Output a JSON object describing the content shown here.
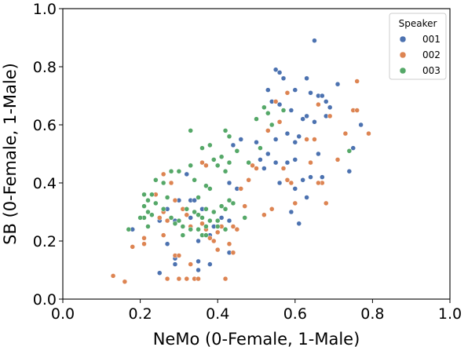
{
  "chart_data": {
    "type": "scatter",
    "xlabel": "NeMo (0-Female, 1-Male)",
    "ylabel": "SB (0-Female, 1-Male)",
    "xlim": [
      0.0,
      1.0
    ],
    "ylim": [
      0.0,
      1.0
    ],
    "xticks": [
      "0.0",
      "0.2",
      "0.4",
      "0.6",
      "0.8",
      "1.0"
    ],
    "yticks": [
      "0.0",
      "0.2",
      "0.4",
      "0.6",
      "0.8",
      "1.0"
    ],
    "grid": false,
    "legend": {
      "title": "Speaker",
      "placement": "top-right"
    },
    "series": [
      {
        "name": "001",
        "color": "#4c72b0",
        "points": [
          [
            0.65,
            0.89
          ],
          [
            0.55,
            0.79
          ],
          [
            0.56,
            0.78
          ],
          [
            0.57,
            0.76
          ],
          [
            0.63,
            0.76
          ],
          [
            0.71,
            0.74
          ],
          [
            0.53,
            0.72
          ],
          [
            0.6,
            0.72
          ],
          [
            0.64,
            0.71
          ],
          [
            0.66,
            0.7
          ],
          [
            0.67,
            0.7
          ],
          [
            0.68,
            0.68
          ],
          [
            0.69,
            0.66
          ],
          [
            0.54,
            0.68
          ],
          [
            0.56,
            0.67
          ],
          [
            0.59,
            0.65
          ],
          [
            0.63,
            0.63
          ],
          [
            0.68,
            0.63
          ],
          [
            0.62,
            0.62
          ],
          [
            0.65,
            0.61
          ],
          [
            0.77,
            0.6
          ],
          [
            0.53,
            0.58
          ],
          [
            0.58,
            0.57
          ],
          [
            0.61,
            0.56
          ],
          [
            0.6,
            0.54
          ],
          [
            0.55,
            0.55
          ],
          [
            0.5,
            0.54
          ],
          [
            0.53,
            0.5
          ],
          [
            0.46,
            0.55
          ],
          [
            0.44,
            0.53
          ],
          [
            0.51,
            0.48
          ],
          [
            0.55,
            0.47
          ],
          [
            0.58,
            0.47
          ],
          [
            0.6,
            0.48
          ],
          [
            0.66,
            0.5
          ],
          [
            0.52,
            0.45
          ],
          [
            0.57,
            0.45
          ],
          [
            0.62,
            0.41
          ],
          [
            0.64,
            0.42
          ],
          [
            0.56,
            0.4
          ],
          [
            0.6,
            0.38
          ],
          [
            0.63,
            0.35
          ],
          [
            0.67,
            0.42
          ],
          [
            0.75,
            0.52
          ],
          [
            0.74,
            0.44
          ],
          [
            0.59,
            0.3
          ],
          [
            0.61,
            0.26
          ],
          [
            0.43,
            0.4
          ],
          [
            0.45,
            0.38
          ],
          [
            0.33,
            0.34
          ],
          [
            0.34,
            0.34
          ],
          [
            0.36,
            0.31
          ],
          [
            0.41,
            0.28
          ],
          [
            0.43,
            0.27
          ],
          [
            0.39,
            0.25
          ],
          [
            0.25,
            0.27
          ],
          [
            0.29,
            0.27
          ],
          [
            0.27,
            0.31
          ],
          [
            0.33,
            0.28
          ],
          [
            0.38,
            0.22
          ],
          [
            0.35,
            0.2
          ],
          [
            0.18,
            0.24
          ],
          [
            0.27,
            0.19
          ],
          [
            0.29,
            0.14
          ],
          [
            0.29,
            0.12
          ],
          [
            0.35,
            0.1
          ],
          [
            0.35,
            0.13
          ],
          [
            0.25,
            0.09
          ],
          [
            0.38,
            0.12
          ],
          [
            0.43,
            0.16
          ],
          [
            0.24,
            0.36
          ],
          [
            0.3,
            0.34
          ],
          [
            0.32,
            0.43
          ]
        ]
      },
      {
        "name": "002",
        "color": "#dd8452",
        "points": [
          [
            0.76,
            0.75
          ],
          [
            0.58,
            0.71
          ],
          [
            0.66,
            0.67
          ],
          [
            0.75,
            0.65
          ],
          [
            0.76,
            0.65
          ],
          [
            0.73,
            0.57
          ],
          [
            0.79,
            0.57
          ],
          [
            0.69,
            0.63
          ],
          [
            0.55,
            0.68
          ],
          [
            0.56,
            0.61
          ],
          [
            0.63,
            0.55
          ],
          [
            0.65,
            0.55
          ],
          [
            0.53,
            0.58
          ],
          [
            0.57,
            0.45
          ],
          [
            0.64,
            0.47
          ],
          [
            0.71,
            0.48
          ],
          [
            0.67,
            0.4
          ],
          [
            0.66,
            0.4
          ],
          [
            0.58,
            0.41
          ],
          [
            0.59,
            0.4
          ],
          [
            0.5,
            0.45
          ],
          [
            0.49,
            0.46
          ],
          [
            0.48,
            0.41
          ],
          [
            0.46,
            0.38
          ],
          [
            0.54,
            0.31
          ],
          [
            0.6,
            0.33
          ],
          [
            0.68,
            0.33
          ],
          [
            0.52,
            0.29
          ],
          [
            0.47,
            0.32
          ],
          [
            0.45,
            0.24
          ],
          [
            0.36,
            0.47
          ],
          [
            0.37,
            0.46
          ],
          [
            0.24,
            0.36
          ],
          [
            0.27,
            0.27
          ],
          [
            0.26,
            0.3
          ],
          [
            0.29,
            0.34
          ],
          [
            0.31,
            0.31
          ],
          [
            0.32,
            0.29
          ],
          [
            0.33,
            0.25
          ],
          [
            0.36,
            0.26
          ],
          [
            0.37,
            0.24
          ],
          [
            0.38,
            0.21
          ],
          [
            0.4,
            0.23
          ],
          [
            0.41,
            0.25
          ],
          [
            0.39,
            0.2
          ],
          [
            0.4,
            0.17
          ],
          [
            0.44,
            0.16
          ],
          [
            0.44,
            0.25
          ],
          [
            0.43,
            0.19
          ],
          [
            0.21,
            0.21
          ],
          [
            0.21,
            0.19
          ],
          [
            0.26,
            0.22
          ],
          [
            0.25,
            0.28
          ],
          [
            0.18,
            0.18
          ],
          [
            0.29,
            0.15
          ],
          [
            0.3,
            0.15
          ],
          [
            0.33,
            0.12
          ],
          [
            0.27,
            0.07
          ],
          [
            0.3,
            0.07
          ],
          [
            0.32,
            0.07
          ],
          [
            0.34,
            0.07
          ],
          [
            0.35,
            0.07
          ],
          [
            0.42,
            0.07
          ],
          [
            0.13,
            0.08
          ],
          [
            0.16,
            0.06
          ],
          [
            0.28,
            0.4
          ],
          [
            0.26,
            0.43
          ]
        ]
      },
      {
        "name": "003",
        "color": "#55a868",
        "points": [
          [
            0.5,
            0.62
          ],
          [
            0.53,
            0.64
          ],
          [
            0.54,
            0.6
          ],
          [
            0.52,
            0.66
          ],
          [
            0.57,
            0.65
          ],
          [
            0.33,
            0.58
          ],
          [
            0.42,
            0.58
          ],
          [
            0.43,
            0.56
          ],
          [
            0.38,
            0.53
          ],
          [
            0.36,
            0.52
          ],
          [
            0.45,
            0.51
          ],
          [
            0.41,
            0.49
          ],
          [
            0.39,
            0.48
          ],
          [
            0.43,
            0.47
          ],
          [
            0.4,
            0.46
          ],
          [
            0.42,
            0.44
          ],
          [
            0.3,
            0.44
          ],
          [
            0.28,
            0.44
          ],
          [
            0.33,
            0.46
          ],
          [
            0.48,
            0.47
          ],
          [
            0.51,
            0.52
          ],
          [
            0.74,
            0.51
          ],
          [
            0.34,
            0.41
          ],
          [
            0.24,
            0.41
          ],
          [
            0.26,
            0.4
          ],
          [
            0.37,
            0.39
          ],
          [
            0.38,
            0.38
          ],
          [
            0.35,
            0.35
          ],
          [
            0.21,
            0.36
          ],
          [
            0.23,
            0.36
          ],
          [
            0.22,
            0.34
          ],
          [
            0.24,
            0.33
          ],
          [
            0.27,
            0.35
          ],
          [
            0.21,
            0.32
          ],
          [
            0.22,
            0.3
          ],
          [
            0.21,
            0.28
          ],
          [
            0.23,
            0.29
          ],
          [
            0.26,
            0.31
          ],
          [
            0.28,
            0.28
          ],
          [
            0.29,
            0.26
          ],
          [
            0.3,
            0.27
          ],
          [
            0.32,
            0.31
          ],
          [
            0.34,
            0.3
          ],
          [
            0.35,
            0.29
          ],
          [
            0.37,
            0.31
          ],
          [
            0.36,
            0.28
          ],
          [
            0.38,
            0.27
          ],
          [
            0.4,
            0.27
          ],
          [
            0.47,
            0.28
          ],
          [
            0.39,
            0.3
          ],
          [
            0.41,
            0.32
          ],
          [
            0.42,
            0.31
          ],
          [
            0.43,
            0.34
          ],
          [
            0.44,
            0.33
          ],
          [
            0.31,
            0.25
          ],
          [
            0.33,
            0.24
          ],
          [
            0.35,
            0.24
          ],
          [
            0.36,
            0.22
          ],
          [
            0.37,
            0.22
          ],
          [
            0.37,
            0.25
          ],
          [
            0.42,
            0.24
          ],
          [
            0.4,
            0.25
          ],
          [
            0.22,
            0.25
          ],
          [
            0.2,
            0.28
          ],
          [
            0.17,
            0.24
          ],
          [
            0.31,
            0.22
          ]
        ]
      }
    ]
  }
}
